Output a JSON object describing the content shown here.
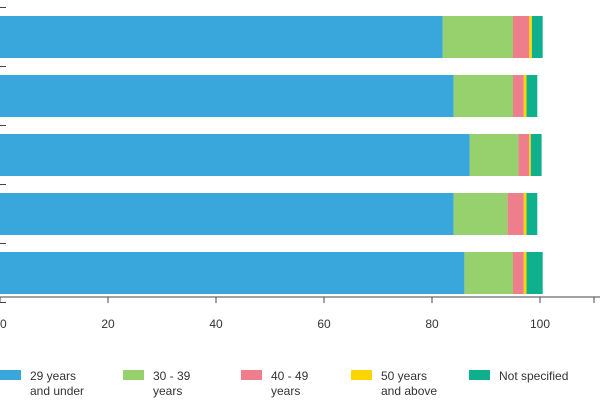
{
  "chart_data": {
    "type": "bar",
    "orientation": "horizontal",
    "stacked": true,
    "categories": [
      "",
      "",
      "",
      "",
      ""
    ],
    "series": [
      {
        "name": "29 years\nand under",
        "color": "#39a7dc",
        "values": [
          82,
          84,
          87,
          84,
          86
        ]
      },
      {
        "name": "30 - 39\nyears",
        "color": "#97d16d",
        "values": [
          13,
          11,
          9,
          10,
          9
        ]
      },
      {
        "name": "40 - 49\nyears",
        "color": "#ee7e8c",
        "values": [
          3,
          2,
          2,
          3,
          2
        ]
      },
      {
        "name": "50 years\nand above",
        "color": "#fdd500",
        "values": [
          0.5,
          0.5,
          0.3,
          0.5,
          0.5
        ]
      },
      {
        "name": "Not specified",
        "color": "#0fb08e",
        "values": [
          2,
          2,
          2,
          2,
          3
        ]
      }
    ],
    "x_ticks": [
      "0",
      "20",
      "40",
      "60",
      "80",
      "100"
    ],
    "xlim": [
      0,
      110
    ],
    "grid": false,
    "legend": "bottom",
    "title": "",
    "xlabel": "",
    "ylabel": ""
  }
}
